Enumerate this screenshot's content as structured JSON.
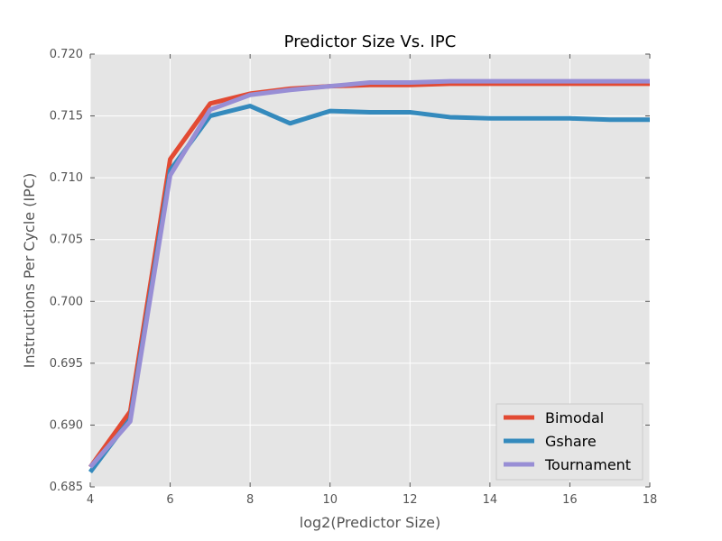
{
  "chart_data": {
    "type": "line",
    "title": "Predictor Size Vs. IPC",
    "xlabel": "log2(Predictor Size)",
    "ylabel": "Instructions Per Cycle (IPC)",
    "xlim": [
      4,
      18
    ],
    "ylim": [
      0.685,
      0.72
    ],
    "xticks": [
      4,
      6,
      8,
      10,
      12,
      14,
      16,
      18
    ],
    "yticks": [
      0.685,
      0.69,
      0.695,
      0.7,
      0.705,
      0.71,
      0.715,
      0.72
    ],
    "xtick_labels": [
      "4",
      "6",
      "8",
      "10",
      "12",
      "14",
      "16",
      "18"
    ],
    "ytick_labels": [
      "0.685",
      "0.690",
      "0.695",
      "0.700",
      "0.705",
      "0.710",
      "0.715",
      "0.720"
    ],
    "grid": true,
    "legend_position": "lower-right",
    "x": [
      4,
      5,
      6,
      7,
      8,
      9,
      10,
      11,
      12,
      13,
      14,
      15,
      16,
      17,
      18
    ],
    "series": [
      {
        "name": "Bimodal",
        "color": "#E24A33",
        "values": [
          0.6866,
          0.6911,
          0.7115,
          0.716,
          0.7168,
          0.7172,
          0.7174,
          0.7175,
          0.7175,
          0.7176,
          0.7176,
          0.7176,
          0.7176,
          0.7176,
          0.7176
        ]
      },
      {
        "name": "Gshare",
        "color": "#348ABD",
        "values": [
          0.6862,
          0.6905,
          0.7106,
          0.715,
          0.7158,
          0.7144,
          0.7154,
          0.7153,
          0.7153,
          0.7149,
          0.7148,
          0.7148,
          0.7148,
          0.7147,
          0.7147
        ]
      },
      {
        "name": "Tournament",
        "color": "#988ED5",
        "values": [
          0.6866,
          0.6903,
          0.7102,
          0.7155,
          0.7167,
          0.7171,
          0.7174,
          0.7177,
          0.7177,
          0.7178,
          0.7178,
          0.7178,
          0.7178,
          0.7178,
          0.7178
        ]
      }
    ]
  },
  "colors": {
    "plot_background": "#E5E5E5",
    "grid": "#FFFFFF"
  }
}
